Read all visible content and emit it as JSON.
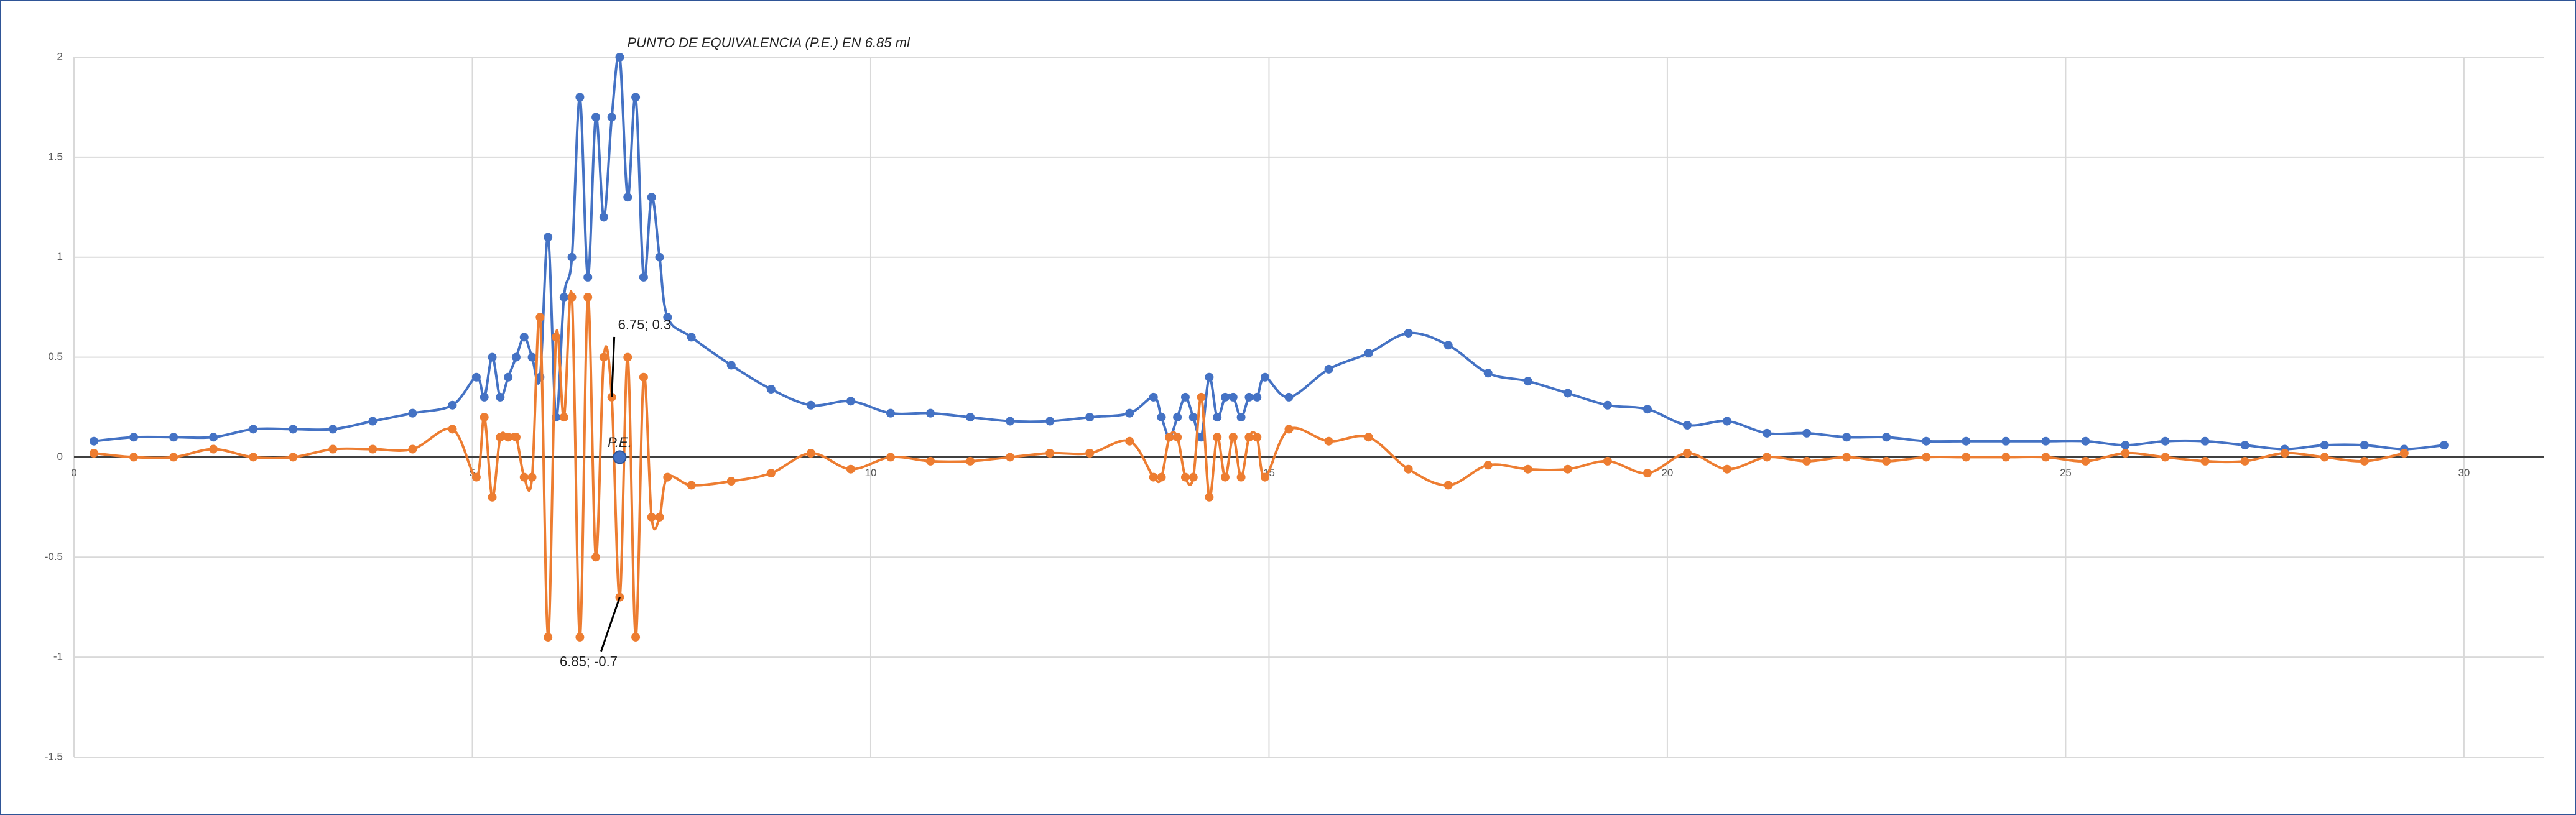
{
  "chart_data": {
    "type": "line",
    "x": [
      0.25,
      0.75,
      1.25,
      1.75,
      2.25,
      2.75,
      3.25,
      3.75,
      4.25,
      4.75,
      5.05,
      5.15,
      5.25,
      5.35,
      5.45,
      5.55,
      5.65,
      5.75,
      5.85,
      5.95,
      6.05,
      6.15,
      6.25,
      6.35,
      6.45,
      6.55,
      6.65,
      6.75,
      6.85,
      6.95,
      7.05,
      7.15,
      7.25,
      7.35,
      7.45,
      7.75,
      8.25,
      8.75,
      9.25,
      9.75,
      10.25,
      10.75,
      11.25,
      11.75,
      12.25,
      12.75,
      13.25,
      13.55,
      13.65,
      13.75,
      13.85,
      13.95,
      14.05,
      14.15,
      14.25,
      14.35,
      14.45,
      14.55,
      14.65,
      14.75,
      14.85,
      14.95,
      15.25,
      15.75,
      16.25,
      16.75,
      17.25,
      17.75,
      18.25,
      18.75,
      19.25,
      19.75,
      20.25,
      20.75,
      21.25,
      21.75,
      22.25,
      22.75,
      23.25,
      23.75,
      24.25,
      24.75,
      25.25,
      25.75,
      26.25,
      26.75,
      27.25,
      27.75,
      28.25,
      28.75,
      29.25,
      29.75
    ],
    "series": [
      {
        "color": "#4472c4",
        "values": [
          0.08,
          0.1,
          0.1,
          0.1,
          0.14,
          0.14,
          0.14,
          0.18,
          0.22,
          0.26,
          0.4,
          0.3,
          0.5,
          0.3,
          0.4,
          0.5,
          0.6,
          0.5,
          0.4,
          1.1,
          0.2,
          0.8,
          1.0,
          1.8,
          0.9,
          1.7,
          1.2,
          1.7,
          2.0,
          1.3,
          1.8,
          0.9,
          1.3,
          1.0,
          0.7,
          0.6,
          0.46,
          0.34,
          0.26,
          0.28,
          0.22,
          0.22,
          0.2,
          0.18,
          0.18,
          0.2,
          0.22,
          0.3,
          0.2,
          0.1,
          0.2,
          0.3,
          0.2,
          0.1,
          0.4,
          0.2,
          0.3,
          0.3,
          0.2,
          0.3,
          0.3,
          0.4,
          0.3,
          0.44,
          0.52,
          0.62,
          0.56,
          0.42,
          0.38,
          0.32,
          0.26,
          0.24,
          0.16,
          0.18,
          0.12,
          0.12,
          0.1,
          0.1,
          0.08,
          0.08,
          0.08,
          0.08,
          0.08,
          0.06,
          0.08,
          0.08,
          0.06,
          0.04,
          0.06,
          0.06,
          0.04,
          0.06
        ]
      },
      {
        "color": "#ed7d31",
        "values": [
          0.02,
          0,
          0,
          0.04,
          0,
          0,
          0.04,
          0.04,
          0.04,
          0.14,
          -0.1,
          0.2,
          -0.2,
          0.1,
          0.1,
          0.1,
          -0.1,
          -0.1,
          0.7,
          -0.9,
          0.6,
          0.2,
          0.8,
          -0.9,
          0.8,
          -0.5,
          0.5,
          0.3,
          -0.7,
          0.5,
          -0.9,
          0.4,
          -0.3,
          -0.3,
          -0.1,
          -0.14,
          -0.12,
          -0.08,
          0.02,
          -0.06,
          0,
          -0.02,
          -0.02,
          0,
          0.02,
          0.02,
          0.08,
          -0.1,
          -0.1,
          0.1,
          0.1,
          -0.1,
          -0.1,
          0.3,
          -0.2,
          0.1,
          -0.1,
          0.1,
          -0.1,
          0.1,
          0.1,
          -0.1,
          0.14,
          0.08,
          0.1,
          -0.06,
          -0.14,
          -0.04,
          -0.06,
          -0.06,
          -0.02,
          -0.08,
          0.02,
          -0.06,
          0,
          -0.02,
          0,
          -0.02,
          0,
          0,
          0,
          0,
          -0.02,
          0.02,
          0,
          -0.02,
          -0.02,
          0.02,
          0,
          -0.02,
          0.02,
          null
        ]
      }
    ],
    "xlim": [
      0,
      31
    ],
    "xticks": [
      0,
      5,
      10,
      15,
      20,
      25,
      30
    ],
    "ylim": [
      -1.5,
      2
    ],
    "yticks": [
      -1.5,
      -1,
      -0.5,
      0,
      0.5,
      1,
      1.5,
      2
    ],
    "grid": true,
    "annotations": [
      {
        "text": "PUNTO DE EQUIVALENCIA (P.E.) EN 6.85 ml",
        "x": 6.85,
        "y": 2
      },
      {
        "text": "6.75; 0.3",
        "x": 6.75,
        "y": 0.3
      },
      {
        "text": "6.85; -0.7",
        "x": 6.85,
        "y": -0.7
      },
      {
        "text": "P.E.",
        "x": 6.85,
        "y": 0
      }
    ]
  }
}
